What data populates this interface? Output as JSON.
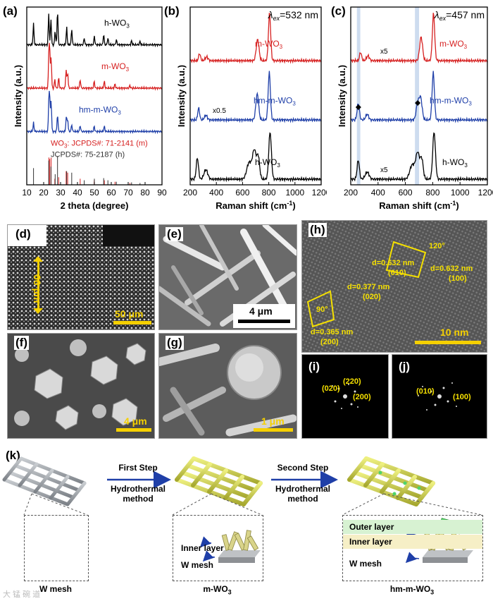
{
  "panels": {
    "a": "(a)",
    "b": "(b)",
    "c": "(c)",
    "d": "(d)",
    "e": "(e)",
    "f": "(f)",
    "g": "(g)",
    "h": "(h)",
    "i": "(i)",
    "j": "(j)",
    "k": "(k)"
  },
  "chart_data": [
    {
      "id": "a",
      "type": "line",
      "xlabel": "2 theta (degree)",
      "ylabel": "Intensity (a.u.)",
      "xlim": [
        10,
        90
      ],
      "xticks": [
        10,
        20,
        30,
        40,
        50,
        60,
        70,
        80,
        90
      ],
      "series": [
        {
          "name": "h-WO3",
          "label": "h-WO",
          "sub": "3",
          "color": "#000000",
          "peaks": [
            [
              14,
              0.6
            ],
            [
              23,
              0.9
            ],
            [
              24.3,
              0.75
            ],
            [
              26.8,
              0.4
            ],
            [
              28.2,
              1.0
            ],
            [
              33.6,
              0.5
            ],
            [
              36.6,
              0.45
            ],
            [
              44,
              0.2
            ],
            [
              50,
              0.25
            ],
            [
              55.5,
              0.3
            ],
            [
              58,
              0.2
            ],
            [
              63,
              0.15
            ],
            [
              72,
              0.12
            ],
            [
              77,
              0.1
            ]
          ]
        },
        {
          "name": "m-WO3",
          "label": "m-WO",
          "sub": "3",
          "color": "#d62020",
          "peaks": [
            [
              23.1,
              1.0
            ],
            [
              23.6,
              0.95
            ],
            [
              24.4,
              0.9
            ],
            [
              26.6,
              0.25
            ],
            [
              28.9,
              0.3
            ],
            [
              33.3,
              0.55
            ],
            [
              34.2,
              0.45
            ],
            [
              41.6,
              0.25
            ],
            [
              49.9,
              0.2
            ],
            [
              55.9,
              0.2
            ],
            [
              62.2,
              0.12
            ],
            [
              71,
              0.08
            ]
          ]
        },
        {
          "name": "hm-m-WO3",
          "label": "hm-m-WO",
          "sub": "3",
          "color": "#1f3fa8",
          "peaks": [
            [
              14,
              0.25
            ],
            [
              23.1,
              0.9
            ],
            [
              23.6,
              0.85
            ],
            [
              24.4,
              0.9
            ],
            [
              28.2,
              0.5
            ],
            [
              33.4,
              0.45
            ],
            [
              34.2,
              0.35
            ],
            [
              36.6,
              0.2
            ],
            [
              41.6,
              0.18
            ],
            [
              49.9,
              0.15
            ],
            [
              55.9,
              0.15
            ]
          ]
        }
      ],
      "references": [
        {
          "label": "WO",
          "sub": "3",
          "tail": ": JCPDS#: 71-2141 (m)",
          "color": "#d62020",
          "lines": [
            [
              23.1,
              0.9
            ],
            [
              23.6,
              0.85
            ],
            [
              24.4,
              0.9
            ],
            [
              26.6,
              0.2
            ],
            [
              28.9,
              0.25
            ],
            [
              33.3,
              0.45
            ],
            [
              34.2,
              0.4
            ],
            [
              41.6,
              0.2
            ],
            [
              49.9,
              0.15
            ],
            [
              55.9,
              0.15
            ],
            [
              62.2,
              0.1
            ],
            [
              71,
              0.06
            ]
          ]
        },
        {
          "label": "JCPDS#: 75-2187 (h)",
          "sub": "",
          "tail": "",
          "color": "#333333",
          "lines": [
            [
              14,
              0.55
            ],
            [
              23,
              0.8
            ],
            [
              24.3,
              0.6
            ],
            [
              26.8,
              0.35
            ],
            [
              28.2,
              0.95
            ],
            [
              33.6,
              0.45
            ],
            [
              36.6,
              0.4
            ],
            [
              44,
              0.15
            ],
            [
              50,
              0.2
            ],
            [
              55.5,
              0.22
            ],
            [
              58,
              0.15
            ],
            [
              63,
              0.1
            ],
            [
              72,
              0.08
            ],
            [
              77,
              0.06
            ]
          ]
        }
      ]
    },
    {
      "id": "b",
      "type": "line",
      "xlabel": "Raman shift (cm",
      "xlabel_sup": "-1",
      "xlabel_tail": ")",
      "ylabel": "Intensity (a.u.)",
      "xlim": [
        200,
        1200
      ],
      "xticks": [
        200,
        400,
        600,
        800,
        1000,
        1200
      ],
      "excitation": "=532 nm",
      "series": [
        {
          "name": "m-WO3",
          "label": "m-WO",
          "sub": "3",
          "color": "#d62020",
          "peaks": [
            [
              272,
              0.15,
              10
            ],
            [
              326,
              0.08,
              15
            ],
            [
              715,
              0.45,
              15
            ],
            [
              806,
              1.0,
              12
            ]
          ]
        },
        {
          "name": "hm-m-WO3",
          "label": "hm-m-WO",
          "sub": "3",
          "color": "#1f3fa8",
          "note": "x0.5",
          "peaks": [
            [
              265,
              0.25,
              10
            ],
            [
              320,
              0.1,
              15
            ],
            [
              712,
              0.55,
              15
            ],
            [
              804,
              1.0,
              12
            ]
          ]
        },
        {
          "name": "h-WO3",
          "label": "h-WO",
          "sub": "3",
          "color": "#000000",
          "peaks": [
            [
              255,
              0.45,
              12
            ],
            [
              320,
              0.2,
              20
            ],
            [
              650,
              0.35,
              25
            ],
            [
              690,
              0.6,
              20
            ],
            [
              720,
              0.45,
              15
            ],
            [
              810,
              1.0,
              14
            ]
          ]
        }
      ]
    },
    {
      "id": "c",
      "type": "line",
      "xlabel": "Raman shift (cm",
      "xlabel_sup": "-1",
      "xlabel_tail": ")",
      "ylabel": "Intensity (a.u.)",
      "xlim": [
        200,
        1200
      ],
      "xticks": [
        200,
        400,
        600,
        800,
        1000,
        1200
      ],
      "excitation": "=457 nm",
      "highlight_bands": [
        [
          245,
          270
        ],
        [
          670,
          700
        ]
      ],
      "series": [
        {
          "name": "m-WO3",
          "label": "m-WO",
          "sub": "3",
          "color": "#d62020",
          "note": "x5",
          "peaks": [
            [
              272,
              0.18,
              10
            ],
            [
              326,
              0.1,
              15
            ],
            [
              715,
              0.5,
              15
            ],
            [
              806,
              1.0,
              12
            ]
          ]
        },
        {
          "name": "hm-m-WO3",
          "label": "hm-m-WO",
          "sub": "3",
          "color": "#1f3fa8",
          "peaks": [
            [
              255,
              0.35,
              12
            ],
            [
              320,
              0.12,
              15
            ],
            [
              690,
              0.35,
              15
            ],
            [
              712,
              0.45,
              15
            ],
            [
              804,
              1.0,
              12
            ]
          ]
        },
        {
          "name": "h-WO3",
          "label": "h-WO",
          "sub": "3",
          "color": "#000000",
          "note": "x5",
          "peaks": [
            [
              255,
              0.4,
              12
            ],
            [
              320,
              0.15,
              20
            ],
            [
              650,
              0.3,
              25
            ],
            [
              690,
              0.55,
              20
            ],
            [
              720,
              0.4,
              15
            ],
            [
              810,
              1.0,
              14
            ]
          ]
        }
      ]
    }
  ],
  "sem": {
    "d": {
      "scale": "50 μm",
      "thickness": "66 μm"
    },
    "e": {
      "scale": "4 μm"
    },
    "f": {
      "scale": "4 μm"
    },
    "g": {
      "scale": "1 μm"
    }
  },
  "tem": {
    "scale": "10 nm",
    "annotations": [
      "d=0.632 nm",
      "(010)",
      "d=0.632 nm",
      "(100)",
      "120°",
      "d=0.377 nm",
      "(020)",
      "90°",
      "d=0.365 nm",
      "(200)"
    ]
  },
  "fft_i": [
    "(020)",
    "(220)",
    "(200)"
  ],
  "fft_j": [
    "(010)",
    "(100)"
  ],
  "schematic": {
    "step1": "First Step",
    "step2": "Second Step",
    "method": "Hydrothermal method",
    "stage1": "W mesh",
    "stage2": "m-WO",
    "stage3": "hm-m-WO",
    "sub3": "3",
    "inner": "Inner layer",
    "outer": "Outer layer",
    "wmesh": "W mesh"
  },
  "watermark": "大 锰 碗 道",
  "colors": {
    "red": "#d62020",
    "blue": "#1f3fa8",
    "yellow": "#f5e000",
    "band": "#b8cde8"
  }
}
